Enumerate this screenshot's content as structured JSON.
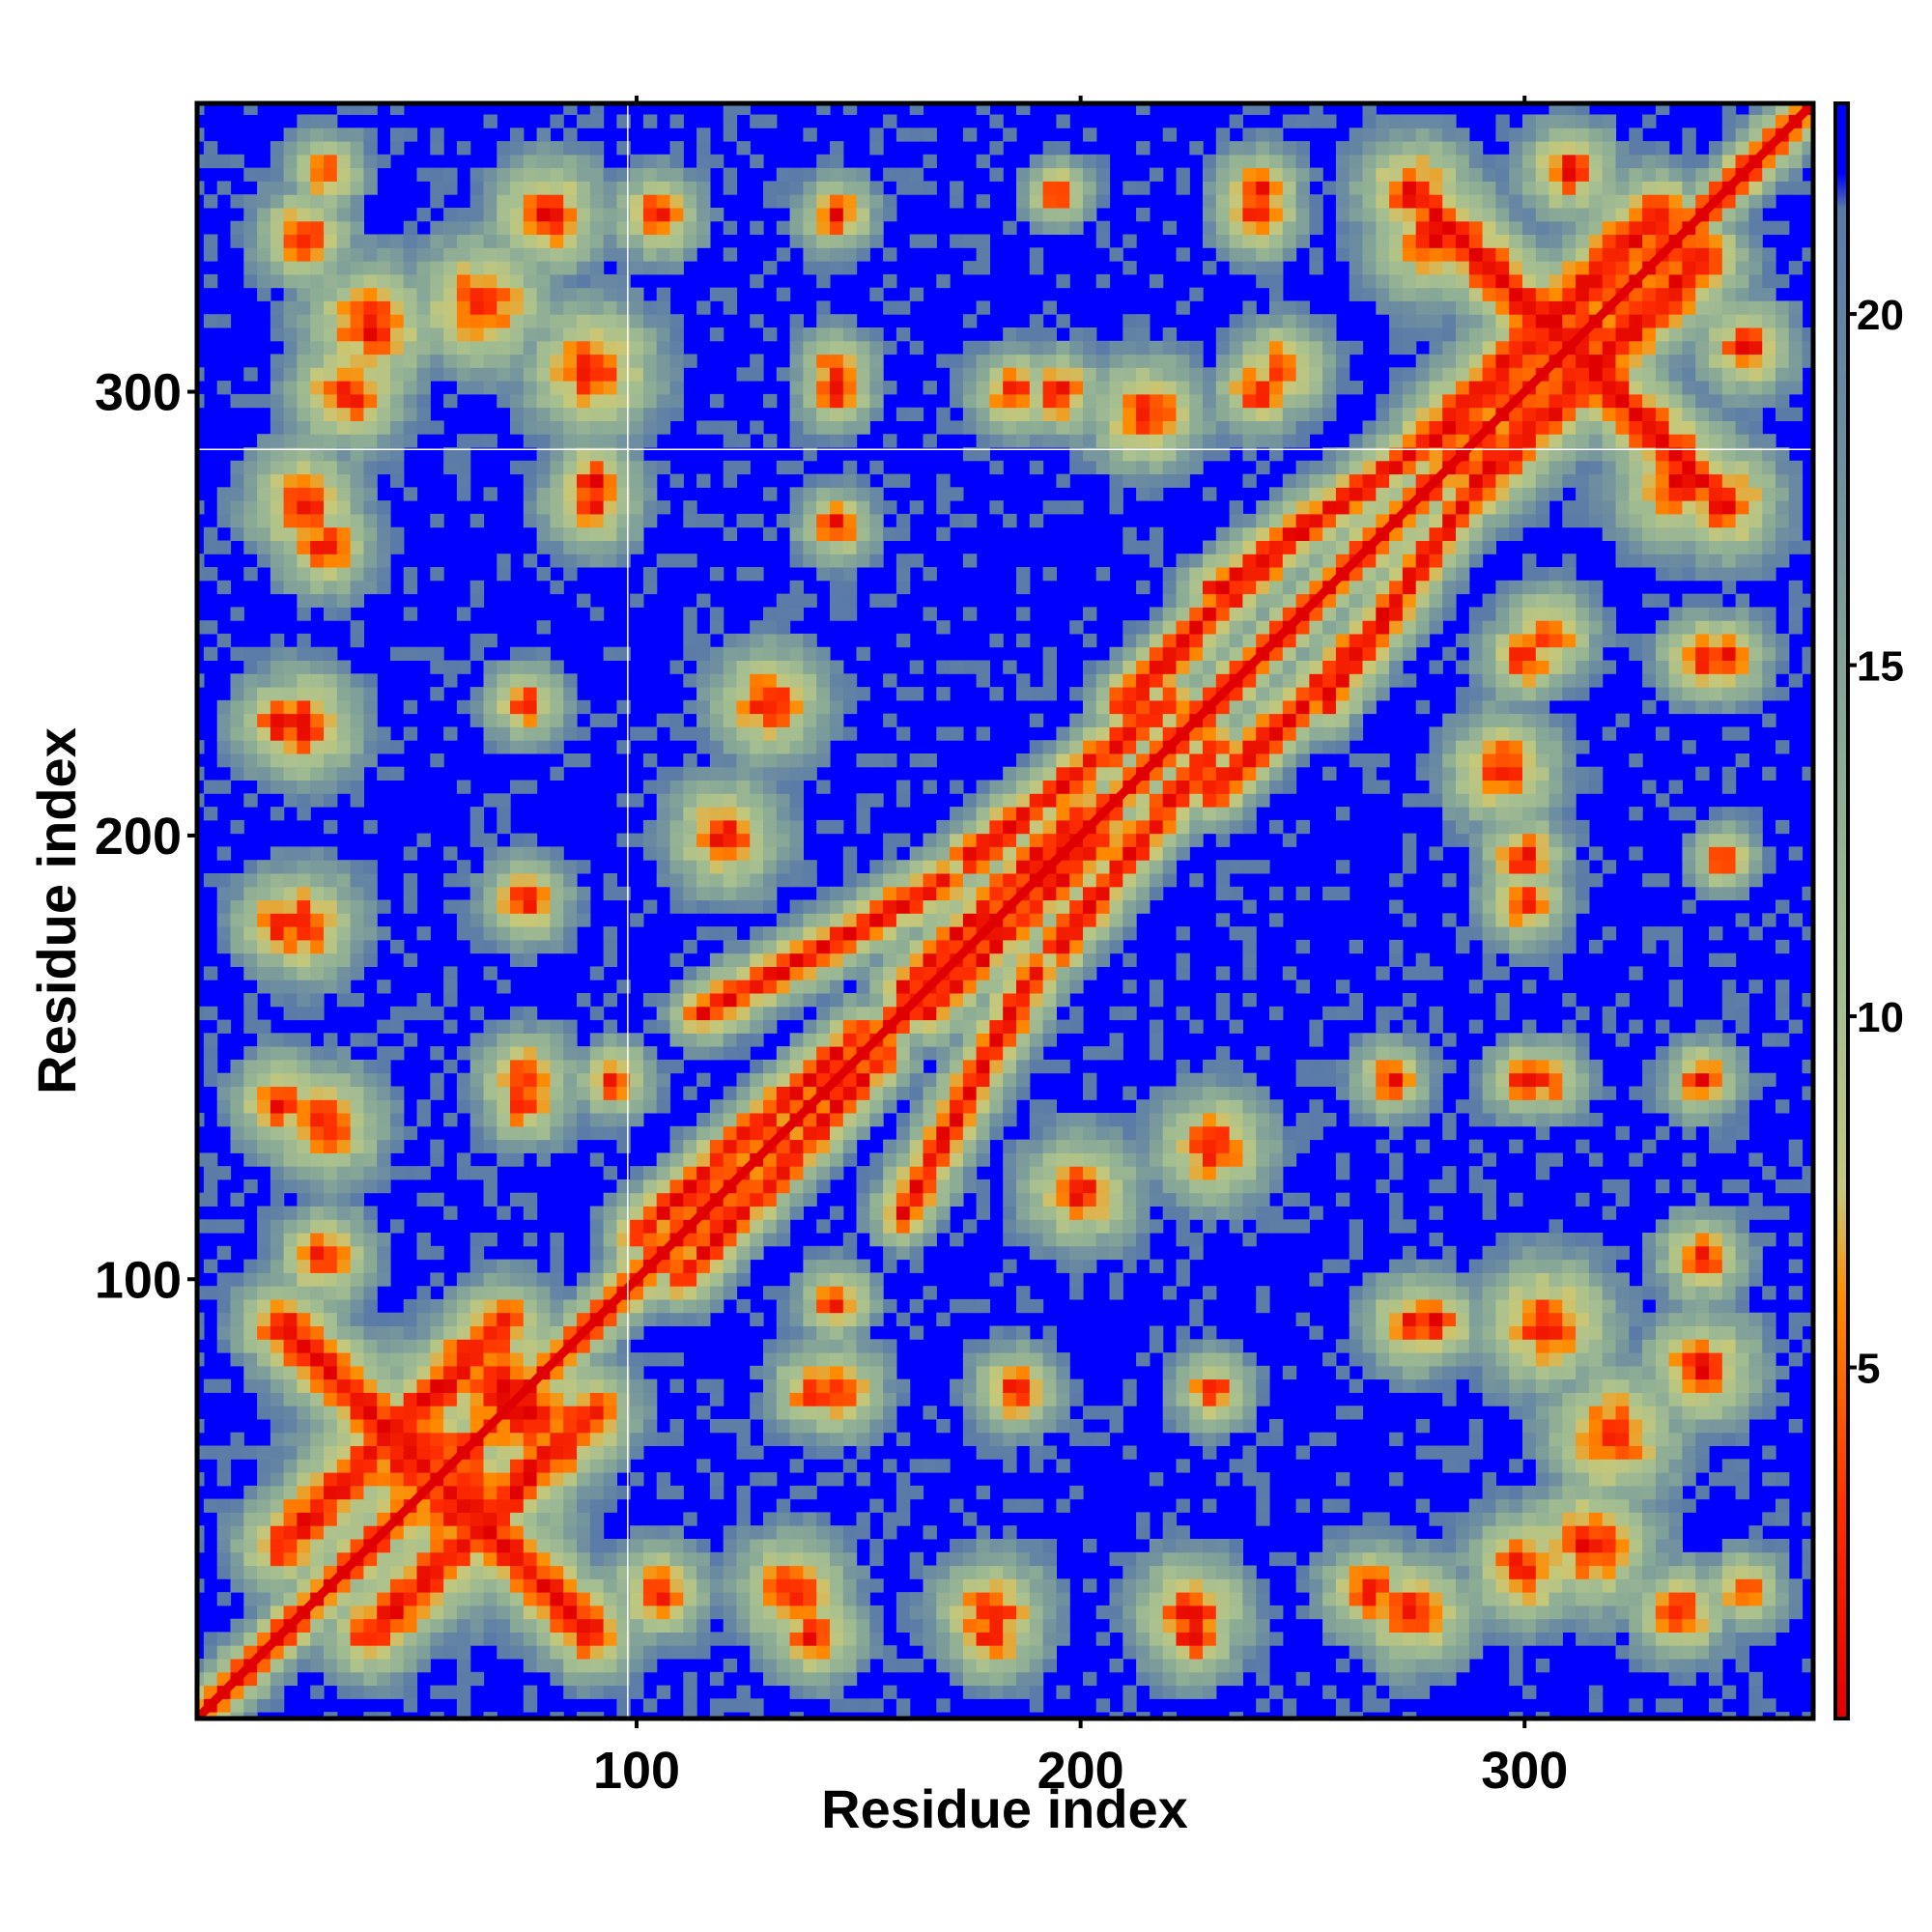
{
  "chart_data": {
    "type": "heatmap",
    "title": "",
    "xlabel": "Residue index",
    "ylabel": "Residue index",
    "xlim": [
      1,
      365
    ],
    "ylim": [
      1,
      365
    ],
    "x_ticks": [
      100,
      200,
      300
    ],
    "y_ticks": [
      100,
      200,
      300
    ],
    "x_tick_labels": [
      "100",
      "200",
      "300"
    ],
    "y_tick_labels": [
      "100",
      "200",
      "300"
    ],
    "colorbar": {
      "ticks": [
        5,
        10,
        15,
        20
      ],
      "tick_labels": [
        "5",
        "10",
        "15",
        "20"
      ],
      "range": [
        0,
        23
      ],
      "stops": [
        {
          "value": 0,
          "color": "#e00000"
        },
        {
          "value": 3,
          "color": "#ff3000"
        },
        {
          "value": 6,
          "color": "#ff8c00"
        },
        {
          "value": 7.5,
          "color": "#c8c878"
        },
        {
          "value": 10,
          "color": "#a8c090"
        },
        {
          "value": 14,
          "color": "#8aaa96"
        },
        {
          "value": 18,
          "color": "#6f8fa0"
        },
        {
          "value": 21.5,
          "color": "#5a7aa8"
        },
        {
          "value": 22,
          "color": "#0000ff"
        },
        {
          "value": 23,
          "color": "#0000ff"
        }
      ]
    },
    "background_color": "#0000ff",
    "guide_lines": {
      "x": 98,
      "y": 287
    },
    "diagonal": {
      "from": 1,
      "to": 365
    },
    "contact_bands": [
      {
        "x1": 110,
        "y1": 100,
        "x2": 155,
        "y2": 150,
        "dir": "perp",
        "width": 10
      },
      {
        "x1": 160,
        "y1": 115,
        "x2": 190,
        "y2": 170,
        "dir": "perp",
        "width": 10
      },
      {
        "x1": 165,
        "y1": 160,
        "x2": 205,
        "y2": 200,
        "dir": "perp",
        "width": 10
      },
      {
        "x1": 195,
        "y1": 175,
        "x2": 230,
        "y2": 220,
        "dir": "perp",
        "width": 10
      },
      {
        "x1": 230,
        "y1": 210,
        "x2": 270,
        "y2": 250,
        "dir": "perp",
        "width": 10
      },
      {
        "x1": 255,
        "y1": 230,
        "x2": 290,
        "y2": 280,
        "dir": "perp",
        "width": 10
      },
      {
        "x1": 100,
        "y1": 110,
        "x2": 150,
        "y2": 155,
        "dir": "perp",
        "width": 10
      },
      {
        "x1": 115,
        "y1": 160,
        "x2": 170,
        "y2": 190,
        "dir": "perp",
        "width": 10
      },
      {
        "x1": 160,
        "y1": 165,
        "x2": 200,
        "y2": 205,
        "dir": "perp",
        "width": 10
      },
      {
        "x1": 175,
        "y1": 195,
        "x2": 220,
        "y2": 230,
        "dir": "perp",
        "width": 10
      },
      {
        "x1": 210,
        "y1": 230,
        "x2": 250,
        "y2": 270,
        "dir": "perp",
        "width": 10
      },
      {
        "x1": 230,
        "y1": 255,
        "x2": 280,
        "y2": 290,
        "dir": "perp",
        "width": 10
      },
      {
        "x1": 20,
        "y1": 90,
        "x2": 70,
        "y2": 40,
        "dir": "free",
        "width": 14
      },
      {
        "x1": 40,
        "y1": 20,
        "x2": 90,
        "y2": 70,
        "dir": "free",
        "width": 14
      },
      {
        "x1": 280,
        "y1": 340,
        "x2": 330,
        "y2": 290,
        "dir": "free",
        "width": 14
      },
      {
        "x1": 290,
        "y1": 280,
        "x2": 340,
        "y2": 330,
        "dir": "free",
        "width": 14
      }
    ],
    "contact_blobs": [
      {
        "x": 25,
        "y": 335,
        "r": 10
      },
      {
        "x": 35,
        "y": 300,
        "r": 12
      },
      {
        "x": 65,
        "y": 320,
        "r": 14
      },
      {
        "x": 25,
        "y": 275,
        "r": 12
      },
      {
        "x": 20,
        "y": 225,
        "r": 10
      },
      {
        "x": 75,
        "y": 230,
        "r": 8
      },
      {
        "x": 20,
        "y": 180,
        "r": 10
      },
      {
        "x": 75,
        "y": 185,
        "r": 8
      },
      {
        "x": 20,
        "y": 140,
        "r": 10
      },
      {
        "x": 75,
        "y": 140,
        "r": 9
      },
      {
        "x": 105,
        "y": 340,
        "r": 9
      },
      {
        "x": 145,
        "y": 305,
        "r": 8
      },
      {
        "x": 185,
        "y": 300,
        "r": 9
      },
      {
        "x": 145,
        "y": 270,
        "r": 8
      },
      {
        "x": 240,
        "y": 345,
        "r": 9
      },
      {
        "x": 275,
        "y": 345,
        "r": 12
      },
      {
        "x": 325,
        "y": 335,
        "r": 12
      },
      {
        "x": 350,
        "y": 310,
        "r": 10
      },
      {
        "x": 335,
        "y": 280,
        "r": 14
      },
      {
        "x": 300,
        "y": 240,
        "r": 9
      },
      {
        "x": 340,
        "y": 240,
        "r": 9
      },
      {
        "x": 300,
        "y": 195,
        "r": 9
      },
      {
        "x": 345,
        "y": 195,
        "r": 7
      },
      {
        "x": 340,
        "y": 145,
        "r": 8
      },
      {
        "x": 300,
        "y": 145,
        "r": 8
      },
      {
        "x": 270,
        "y": 145,
        "r": 8
      },
      {
        "x": 275,
        "y": 90,
        "r": 10
      },
      {
        "x": 305,
        "y": 90,
        "r": 14
      },
      {
        "x": 340,
        "y": 80,
        "r": 12
      },
      {
        "x": 315,
        "y": 40,
        "r": 14
      },
      {
        "x": 350,
        "y": 30,
        "r": 8
      },
      {
        "x": 265,
        "y": 30,
        "r": 10
      },
      {
        "x": 225,
        "y": 25,
        "r": 12
      },
      {
        "x": 180,
        "y": 25,
        "r": 12
      },
      {
        "x": 135,
        "y": 30,
        "r": 12
      },
      {
        "x": 145,
        "y": 75,
        "r": 10
      },
      {
        "x": 185,
        "y": 75,
        "r": 9
      },
      {
        "x": 230,
        "y": 75,
        "r": 6
      },
      {
        "x": 105,
        "y": 30,
        "r": 10
      },
      {
        "x": 120,
        "y": 200,
        "r": 12
      },
      {
        "x": 215,
        "y": 295,
        "r": 12
      },
      {
        "x": 245,
        "y": 305,
        "r": 10
      },
      {
        "x": 90,
        "y": 280,
        "r": 9
      },
      {
        "x": 50,
        "y": 60,
        "r": 22
      },
      {
        "x": 70,
        "y": 75,
        "r": 18
      },
      {
        "x": 230,
        "y": 130,
        "r": 12
      },
      {
        "x": 95,
        "y": 145,
        "r": 8
      }
    ]
  }
}
